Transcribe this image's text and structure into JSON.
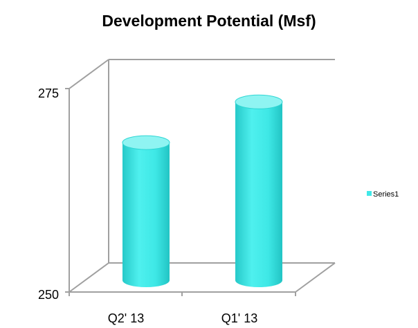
{
  "chart_data": {
    "type": "bar",
    "title": "Development Potential (Msf)",
    "xlabel": "",
    "ylabel": "",
    "categories": [
      "Q2' 13",
      "Q1' 13"
    ],
    "series": [
      {
        "name": "Series1",
        "values": [
          267,
          272
        ]
      }
    ],
    "ylim": [
      250,
      275
    ],
    "yticks": [
      "250",
      "275"
    ],
    "legend_position": "right",
    "grid": false,
    "style": "3d-cylinder",
    "colors": {
      "bar": "#3ee8e6",
      "bar_top": "#8ff4f2",
      "axis": "#a0a0a0",
      "legend": "#40e8e8"
    }
  }
}
